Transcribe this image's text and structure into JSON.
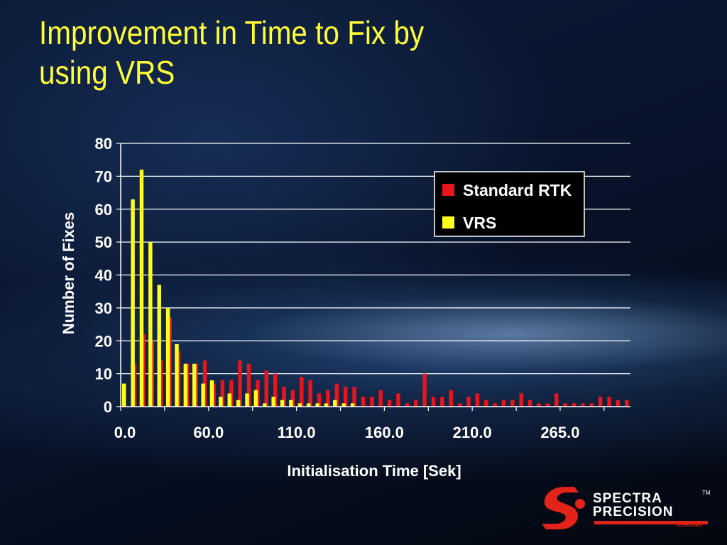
{
  "slide": {
    "title": "Improvement in Time to Fix by using VRS"
  },
  "logo": {
    "line1": "SPECTRA",
    "line2": "PRECISION",
    "trademark": "TM",
    "sub": "TERRASAT"
  },
  "colors": {
    "title": "#ffff33",
    "standard_rtk": "#e8161b",
    "vrs": "#ffff1a",
    "axis_text": "#ffffff",
    "brand_red": "#e2231a"
  },
  "chart_data": {
    "type": "bar",
    "xlabel": "Initialisation Time [Sek]",
    "ylabel": "Number of Fixes",
    "ylim": [
      0,
      80
    ],
    "yticks": [
      0,
      10,
      20,
      30,
      40,
      50,
      60,
      70,
      80
    ],
    "xtick_labels": [
      "0.0",
      "60.0",
      "110.0",
      "160.0",
      "210.0",
      "265.0"
    ],
    "xtick_bins": [
      0,
      10,
      20,
      30,
      40,
      50
    ],
    "grid": true,
    "legend_position": "top-right",
    "bin_count": 58,
    "series": [
      {
        "name": "Standard RTK",
        "values": [
          0,
          13,
          22,
          20,
          14,
          27,
          17,
          13,
          13,
          14,
          7,
          8,
          8,
          14,
          13,
          8,
          11,
          10,
          6,
          5,
          9,
          8,
          4,
          5,
          7,
          6,
          6,
          3,
          3,
          5,
          2,
          4,
          1,
          2,
          10,
          3,
          3,
          5,
          1,
          3,
          4,
          2,
          1,
          2,
          2,
          4,
          2,
          1,
          1,
          4,
          1,
          1,
          1,
          1,
          3,
          3,
          2,
          2
        ]
      },
      {
        "name": "VRS",
        "values": [
          7,
          63,
          72,
          50,
          37,
          30,
          19,
          13,
          13,
          7,
          8,
          3,
          4,
          2,
          4,
          5,
          1,
          3,
          2,
          2,
          1,
          1,
          1,
          1,
          2,
          1,
          1,
          0,
          0,
          0,
          0,
          0,
          0,
          0,
          0,
          0,
          0,
          0,
          0,
          0,
          0,
          0,
          0,
          0,
          0,
          0,
          0,
          0,
          0,
          0,
          0,
          0,
          0,
          0,
          0,
          0,
          0,
          0
        ]
      }
    ]
  }
}
